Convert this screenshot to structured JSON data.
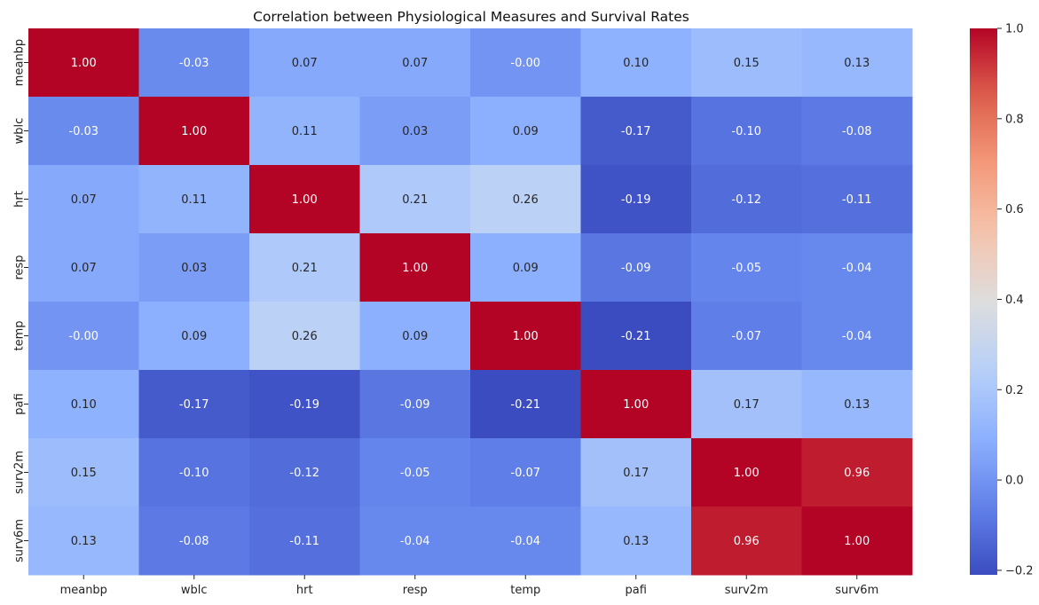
{
  "chart_data": {
    "type": "heatmap",
    "title": "Correlation between Physiological Measures and Survival Rates",
    "xlabel": "",
    "ylabel": "",
    "x_categories": [
      "meanbp",
      "wblc",
      "hrt",
      "resp",
      "temp",
      "pafi",
      "surv2m",
      "surv6m"
    ],
    "y_categories": [
      "meanbp",
      "wblc",
      "hrt",
      "resp",
      "temp",
      "pafi",
      "surv2m",
      "surv6m"
    ],
    "matrix": [
      [
        1.0,
        -0.03,
        0.07,
        0.07,
        -0.0,
        0.1,
        0.15,
        0.13
      ],
      [
        -0.03,
        1.0,
        0.11,
        0.03,
        0.09,
        -0.17,
        -0.1,
        -0.08
      ],
      [
        0.07,
        0.11,
        1.0,
        0.21,
        0.26,
        -0.19,
        -0.12,
        -0.11
      ],
      [
        0.07,
        0.03,
        0.21,
        1.0,
        0.09,
        -0.09,
        -0.05,
        -0.04
      ],
      [
        -0.0,
        0.09,
        0.26,
        0.09,
        1.0,
        -0.21,
        -0.07,
        -0.04
      ],
      [
        0.1,
        -0.17,
        -0.19,
        -0.09,
        -0.21,
        1.0,
        0.17,
        0.13
      ],
      [
        0.15,
        -0.1,
        -0.12,
        -0.05,
        -0.07,
        0.17,
        1.0,
        0.96
      ],
      [
        0.13,
        -0.08,
        -0.11,
        -0.04,
        -0.04,
        0.13,
        0.96,
        1.0
      ]
    ],
    "annotation_labels": [
      [
        "1.00",
        "-0.03",
        "0.07",
        "0.07",
        "-0.00",
        "0.10",
        "0.15",
        "0.13"
      ],
      [
        "-0.03",
        "1.00",
        "0.11",
        "0.03",
        "0.09",
        "-0.17",
        "-0.10",
        "-0.08"
      ],
      [
        "0.07",
        "0.11",
        "1.00",
        "0.21",
        "0.26",
        "-0.19",
        "-0.12",
        "-0.11"
      ],
      [
        "0.07",
        "0.03",
        "0.21",
        "1.00",
        "0.09",
        "-0.09",
        "-0.05",
        "-0.04"
      ],
      [
        "-0.00",
        "0.09",
        "0.26",
        "0.09",
        "1.00",
        "-0.21",
        "-0.07",
        "-0.04"
      ],
      [
        "0.10",
        "-0.17",
        "-0.19",
        "-0.09",
        "-0.21",
        "1.00",
        "0.17",
        "0.13"
      ],
      [
        "0.15",
        "-0.10",
        "-0.12",
        "-0.05",
        "-0.07",
        "0.17",
        "1.00",
        "0.96"
      ],
      [
        "0.13",
        "-0.08",
        "-0.11",
        "-0.04",
        "-0.04",
        "0.13",
        "0.96",
        "1.00"
      ]
    ],
    "colormap": "coolwarm",
    "color_range": [
      -0.21,
      1.0
    ],
    "colorbar_ticks": [
      -0.2,
      0.0,
      0.2,
      0.4,
      0.6,
      0.8,
      1.0
    ],
    "colorbar_tick_labels": [
      "−0.2",
      "0.0",
      "0.2",
      "0.4",
      "0.6",
      "0.8",
      "1.0"
    ],
    "colorbar_placement": "right",
    "grid": false
  }
}
